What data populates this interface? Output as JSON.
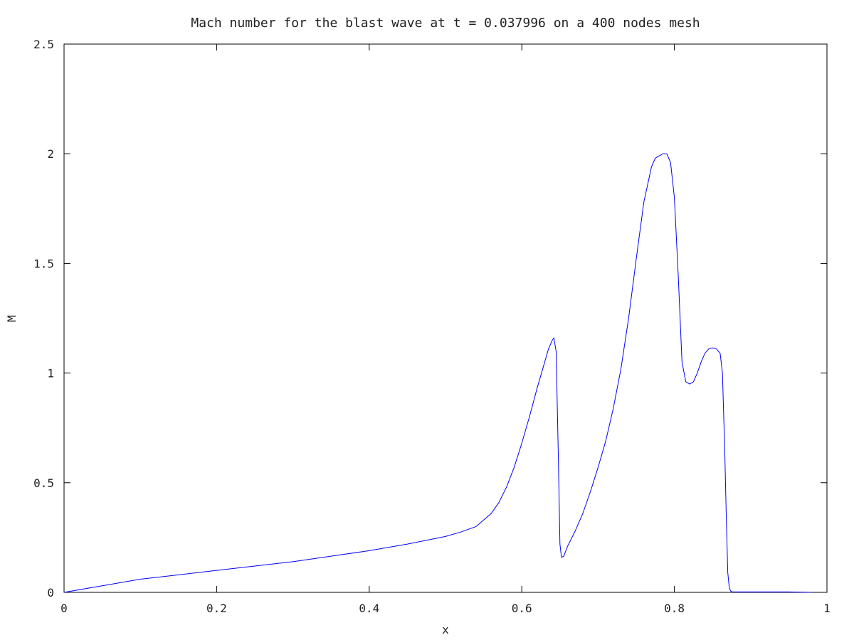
{
  "chart_data": {
    "type": "line",
    "title": "Mach number for the blast wave at t = 0.037996 on a 400 nodes mesh",
    "xlabel": "x",
    "ylabel": "M",
    "xlim": [
      0,
      1
    ],
    "ylim": [
      0,
      2.5
    ],
    "xticks": [
      0,
      0.2,
      0.4,
      0.6,
      0.8,
      1
    ],
    "xtick_labels": [
      "0",
      "0.2",
      "0.4",
      "0.6",
      "0.8",
      "1"
    ],
    "yticks": [
      0,
      0.5,
      1,
      1.5,
      2,
      2.5
    ],
    "ytick_labels": [
      "0",
      "0.5",
      "1",
      "1.5",
      "2",
      "2.5"
    ],
    "grid": false,
    "legend": "none",
    "series": [
      {
        "color": "#0000ff",
        "x": [
          0,
          0.05,
          0.1,
          0.15,
          0.2,
          0.25,
          0.3,
          0.35,
          0.4,
          0.45,
          0.5,
          0.52,
          0.54,
          0.55,
          0.56,
          0.57,
          0.58,
          0.59,
          0.6,
          0.61,
          0.62,
          0.63,
          0.635,
          0.64,
          0.642,
          0.645,
          0.648,
          0.65,
          0.652,
          0.655,
          0.66,
          0.67,
          0.68,
          0.69,
          0.7,
          0.71,
          0.72,
          0.73,
          0.74,
          0.75,
          0.76,
          0.77,
          0.775,
          0.78,
          0.785,
          0.79,
          0.795,
          0.8,
          0.805,
          0.81,
          0.815,
          0.82,
          0.825,
          0.83,
          0.835,
          0.84,
          0.845,
          0.85,
          0.855,
          0.86,
          0.863,
          0.866,
          0.868,
          0.87,
          0.872,
          0.874,
          0.876,
          0.88,
          0.9,
          0.95,
          0.98
        ],
        "y": [
          0,
          0.03,
          0.06,
          0.08,
          0.1,
          0.12,
          0.14,
          0.165,
          0.19,
          0.22,
          0.255,
          0.275,
          0.3,
          0.33,
          0.36,
          0.41,
          0.48,
          0.57,
          0.68,
          0.8,
          0.93,
          1.05,
          1.11,
          1.15,
          1.16,
          1.1,
          0.6,
          0.22,
          0.16,
          0.165,
          0.21,
          0.28,
          0.36,
          0.46,
          0.57,
          0.69,
          0.84,
          1.02,
          1.25,
          1.52,
          1.78,
          1.94,
          1.98,
          1.99,
          2.0,
          2.0,
          1.96,
          1.8,
          1.45,
          1.05,
          0.96,
          0.95,
          0.96,
          1.0,
          1.05,
          1.09,
          1.11,
          1.115,
          1.11,
          1.09,
          1.0,
          0.65,
          0.35,
          0.09,
          0.02,
          0.005,
          0.002,
          0.002,
          0.002,
          0.002,
          0.0
        ]
      }
    ]
  }
}
